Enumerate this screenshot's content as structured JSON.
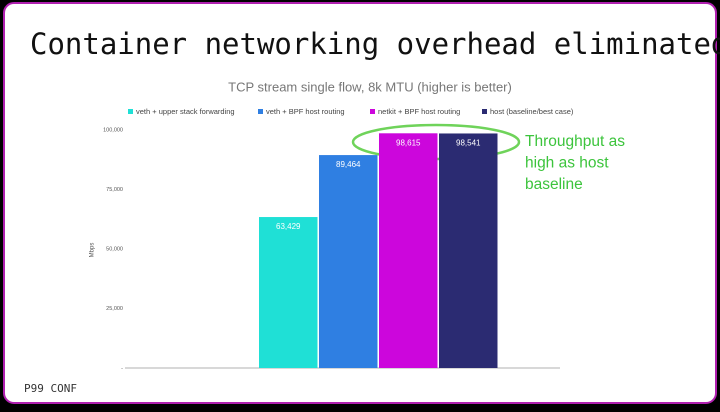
{
  "slide": {
    "title": "Container networking overhead eliminated!",
    "footer": "P99 CONF",
    "annotation": [
      "Throughput as",
      "high as host",
      "baseline"
    ]
  },
  "chart_data": {
    "type": "bar",
    "title": "TCP stream single flow, 8k MTU (higher is better)",
    "y_label": "Mbps",
    "categories": [
      null
    ],
    "series": [
      {
        "name": "veth + upper stack forwarding",
        "color": "#1fe0d6",
        "values": [
          63429
        ],
        "value_labels": [
          "63,429"
        ]
      },
      {
        "name": "veth + BPF host routing",
        "color": "#2f7fe2",
        "values": [
          89464
        ],
        "value_labels": [
          "89,464"
        ]
      },
      {
        "name": "netkit + BPF host routing",
        "color": "#cc06dc",
        "values": [
          98615
        ],
        "value_labels": [
          "98,615"
        ]
      },
      {
        "name": "host (baseline/best case)",
        "color": "#2b2b72",
        "values": [
          98541
        ],
        "value_labels": [
          "98,541"
        ]
      }
    ],
    "ylim": [
      0,
      100000
    ],
    "yticks": [
      {
        "value": 0,
        "label": "-"
      },
      {
        "value": 25000,
        "label": "25,000"
      },
      {
        "value": 50000,
        "label": "50,000"
      },
      {
        "value": 75000,
        "label": "75,000"
      },
      {
        "value": 100000,
        "label": "100,000"
      }
    ],
    "grid": false,
    "legend": "top"
  }
}
